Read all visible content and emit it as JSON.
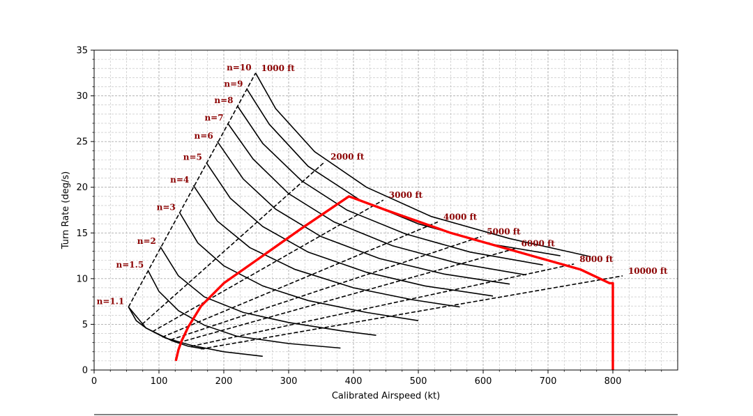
{
  "chart_data": {
    "type": "line",
    "title": "",
    "xlabel": "Calibrated Airspeed (kt)",
    "ylabel": "Turn Rate (deg/s)",
    "xlim": [
      0,
      900
    ],
    "ylim": [
      0,
      35
    ],
    "x_ticks": [
      0,
      100,
      200,
      300,
      400,
      500,
      600,
      700,
      800
    ],
    "y_ticks": [
      0,
      5,
      10,
      15,
      20,
      25,
      30,
      35
    ],
    "x_tick_labels": [
      "0",
      "100",
      "200",
      "300",
      "400",
      "500",
      "600",
      "700",
      "800"
    ],
    "y_tick_labels": [
      "0",
      "5",
      "10",
      "15",
      "20",
      "25",
      "30",
      "35"
    ],
    "grid": true,
    "grid_minor": true,
    "colors": {
      "curves": "#000000",
      "envelope": "#ff0000",
      "annotation": "#8b0000",
      "grid": "#a0a0a0"
    },
    "load_factor_curves": [
      {
        "label": "n=1.1",
        "points": [
          [
            53,
            6.9
          ],
          [
            80,
            4.6
          ],
          [
            110,
            3.5
          ],
          [
            150,
            2.7
          ],
          [
            200,
            2.0
          ],
          [
            260,
            1.5
          ]
        ]
      },
      {
        "label": "n=1.5",
        "points": [
          [
            83,
            10.9
          ],
          [
            100,
            8.6
          ],
          [
            130,
            6.5
          ],
          [
            170,
            4.9
          ],
          [
            220,
            3.7
          ],
          [
            300,
            2.9
          ],
          [
            380,
            2.4
          ]
        ]
      },
      {
        "label": "n=2",
        "points": [
          [
            102,
            13.5
          ],
          [
            130,
            10.3
          ],
          [
            170,
            8.0
          ],
          [
            230,
            6.3
          ],
          [
            300,
            5.2
          ],
          [
            380,
            4.3
          ],
          [
            435,
            3.8
          ]
        ]
      },
      {
        "label": "n=3",
        "points": [
          [
            132,
            17.2
          ],
          [
            160,
            13.9
          ],
          [
            200,
            11.4
          ],
          [
            260,
            9.2
          ],
          [
            330,
            7.6
          ],
          [
            420,
            6.3
          ],
          [
            500,
            5.4
          ]
        ]
      },
      {
        "label": "n=4",
        "points": [
          [
            153,
            20.2
          ],
          [
            190,
            16.3
          ],
          [
            240,
            13.4
          ],
          [
            310,
            11.0
          ],
          [
            400,
            9.0
          ],
          [
            490,
            7.7
          ],
          [
            564,
            6.9
          ]
        ]
      },
      {
        "label": "n=5",
        "points": [
          [
            173,
            22.7
          ],
          [
            210,
            18.8
          ],
          [
            260,
            15.7
          ],
          [
            330,
            12.9
          ],
          [
            420,
            10.7
          ],
          [
            510,
            9.2
          ],
          [
            615,
            8.1
          ]
        ]
      },
      {
        "label": "n=6",
        "points": [
          [
            190,
            25.0
          ],
          [
            230,
            20.9
          ],
          [
            280,
            17.6
          ],
          [
            350,
            14.6
          ],
          [
            440,
            12.2
          ],
          [
            540,
            10.5
          ],
          [
            641,
            9.4
          ]
        ]
      },
      {
        "label": "n=7",
        "points": [
          [
            206,
            27.0
          ],
          [
            245,
            23.1
          ],
          [
            300,
            19.3
          ],
          [
            370,
            16.2
          ],
          [
            460,
            13.6
          ],
          [
            560,
            11.7
          ],
          [
            666,
            10.4
          ]
        ]
      },
      {
        "label": "n=8",
        "points": [
          [
            221,
            28.9
          ],
          [
            260,
            24.8
          ],
          [
            320,
            20.7
          ],
          [
            390,
            17.5
          ],
          [
            480,
            14.9
          ],
          [
            580,
            12.9
          ],
          [
            692,
            11.5
          ]
        ]
      },
      {
        "label": "n=9",
        "points": [
          [
            236,
            30.7
          ],
          [
            270,
            26.9
          ],
          [
            330,
            22.3
          ],
          [
            410,
            18.6
          ],
          [
            500,
            16.0
          ],
          [
            610,
            13.8
          ],
          [
            719,
            12.5
          ]
        ]
      },
      {
        "label": "n=10",
        "points": [
          [
            249,
            32.5
          ],
          [
            280,
            28.6
          ],
          [
            340,
            23.9
          ],
          [
            420,
            20.0
          ],
          [
            520,
            16.8
          ],
          [
            640,
            14.4
          ],
          [
            766,
            12.4
          ]
        ]
      }
    ],
    "altitude_lines": [
      {
        "label": "1000 ft",
        "points": [
          [
            53,
            6.9
          ],
          [
            249,
            32.5
          ]
        ]
      },
      {
        "label": "2000 ft",
        "points": [
          [
            74,
            5.0
          ],
          [
            356,
            22.8
          ]
        ]
      },
      {
        "label": "3000 ft",
        "points": [
          [
            90,
            4.2
          ],
          [
            446,
            18.6
          ]
        ]
      },
      {
        "label": "4000 ft",
        "points": [
          [
            105,
            3.6
          ],
          [
            530,
            16.2
          ]
        ]
      },
      {
        "label": "5000 ft",
        "points": [
          [
            118,
            3.3
          ],
          [
            597,
            14.6
          ]
        ]
      },
      {
        "label": "6000 ft",
        "points": [
          [
            130,
            3.0
          ],
          [
            650,
            13.3
          ]
        ]
      },
      {
        "label": "8000 ft",
        "points": [
          [
            150,
            2.6
          ],
          [
            740,
            11.6
          ]
        ]
      },
      {
        "label": "10000 ft",
        "points": [
          [
            165,
            2.3
          ],
          [
            815,
            10.3
          ]
        ]
      }
    ],
    "stall_boundary": [
      [
        53,
        6.9
      ],
      [
        65,
        5.4
      ],
      [
        80,
        4.6
      ],
      [
        100,
        3.9
      ],
      [
        120,
        3.2
      ],
      [
        145,
        2.6
      ],
      [
        170,
        2.3
      ]
    ],
    "flight_envelope": [
      [
        126,
        1.0
      ],
      [
        130,
        2.2
      ],
      [
        135,
        3.2
      ],
      [
        145,
        4.7
      ],
      [
        165,
        7.0
      ],
      [
        200,
        9.5
      ],
      [
        260,
        12.5
      ],
      [
        320,
        15.5
      ],
      [
        393,
        19.0
      ],
      [
        450,
        17.5
      ],
      [
        550,
        15.0
      ],
      [
        650,
        13.0
      ],
      [
        750,
        11.0
      ],
      [
        795,
        9.5
      ],
      [
        800,
        9.5
      ],
      [
        800,
        0
      ]
    ]
  }
}
